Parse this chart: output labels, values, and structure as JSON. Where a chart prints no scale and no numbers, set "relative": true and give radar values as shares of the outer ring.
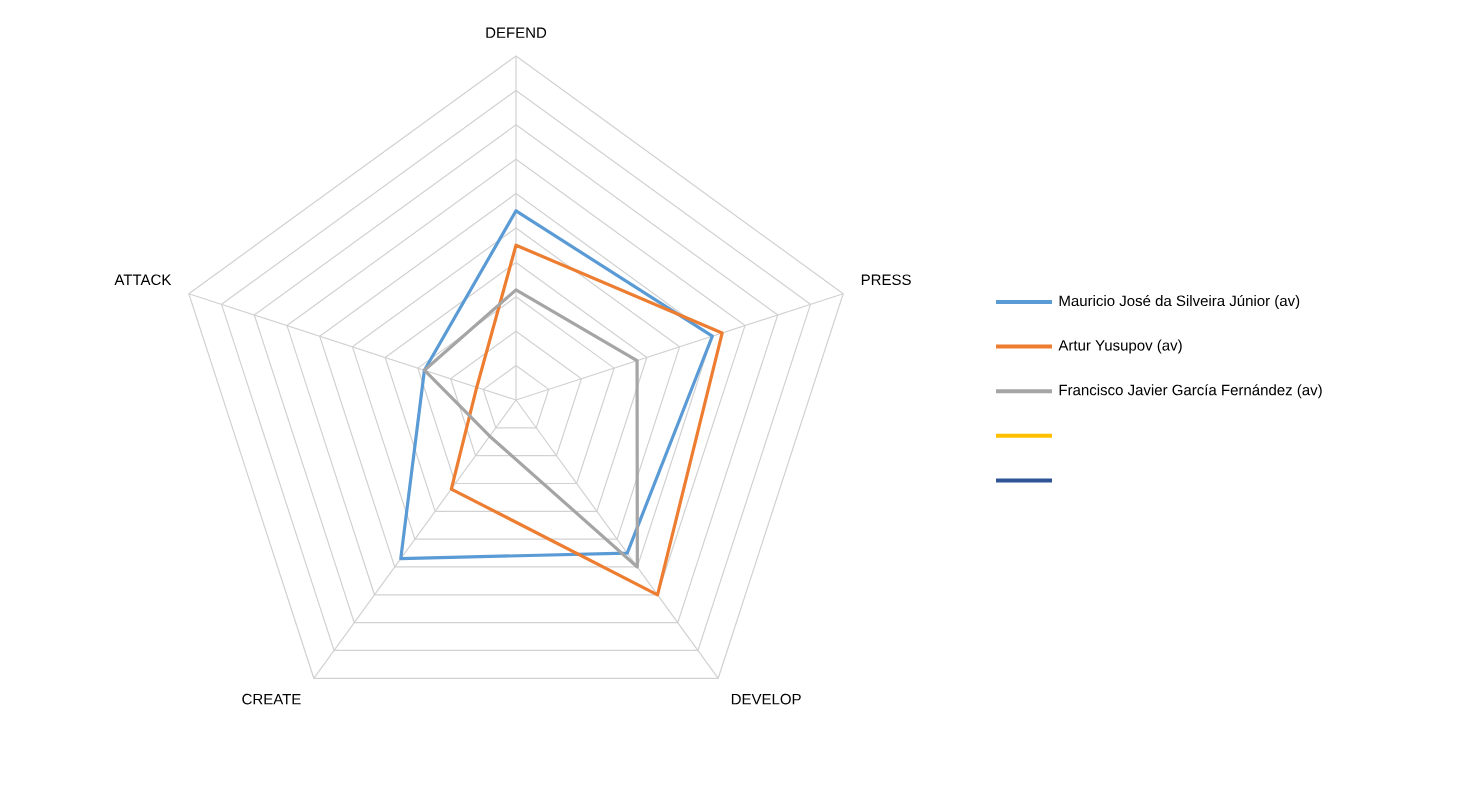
{
  "chart_data": {
    "type": "radar",
    "relative": true,
    "grid": true,
    "legend": "right",
    "categories": [
      "DEFEND",
      "PRESS",
      "DEVELOP",
      "CREATE",
      "ATTACK"
    ],
    "series": [
      {
        "name": "Mauricio José da Silveira Júnior (av)",
        "color": "#5b9bd5",
        "values": [
          0.55,
          0.6,
          0.55,
          0.57,
          0.28
        ]
      },
      {
        "name": "Artur Yusupov (av)",
        "color": "#ed7d31",
        "values": [
          0.45,
          0.63,
          0.7,
          0.32,
          0.12
        ]
      },
      {
        "name": "Francisco Javier García Fernández (av)",
        "color": "#a5a5a5",
        "values": [
          0.32,
          0.37,
          0.6,
          0.13,
          0.28
        ]
      },
      {
        "color": "#ffc000",
        "values": [
          null,
          null,
          null,
          null,
          null
        ]
      },
      {
        "color": "#2f5597",
        "values": [
          null,
          null,
          null,
          null,
          null
        ]
      }
    ]
  }
}
